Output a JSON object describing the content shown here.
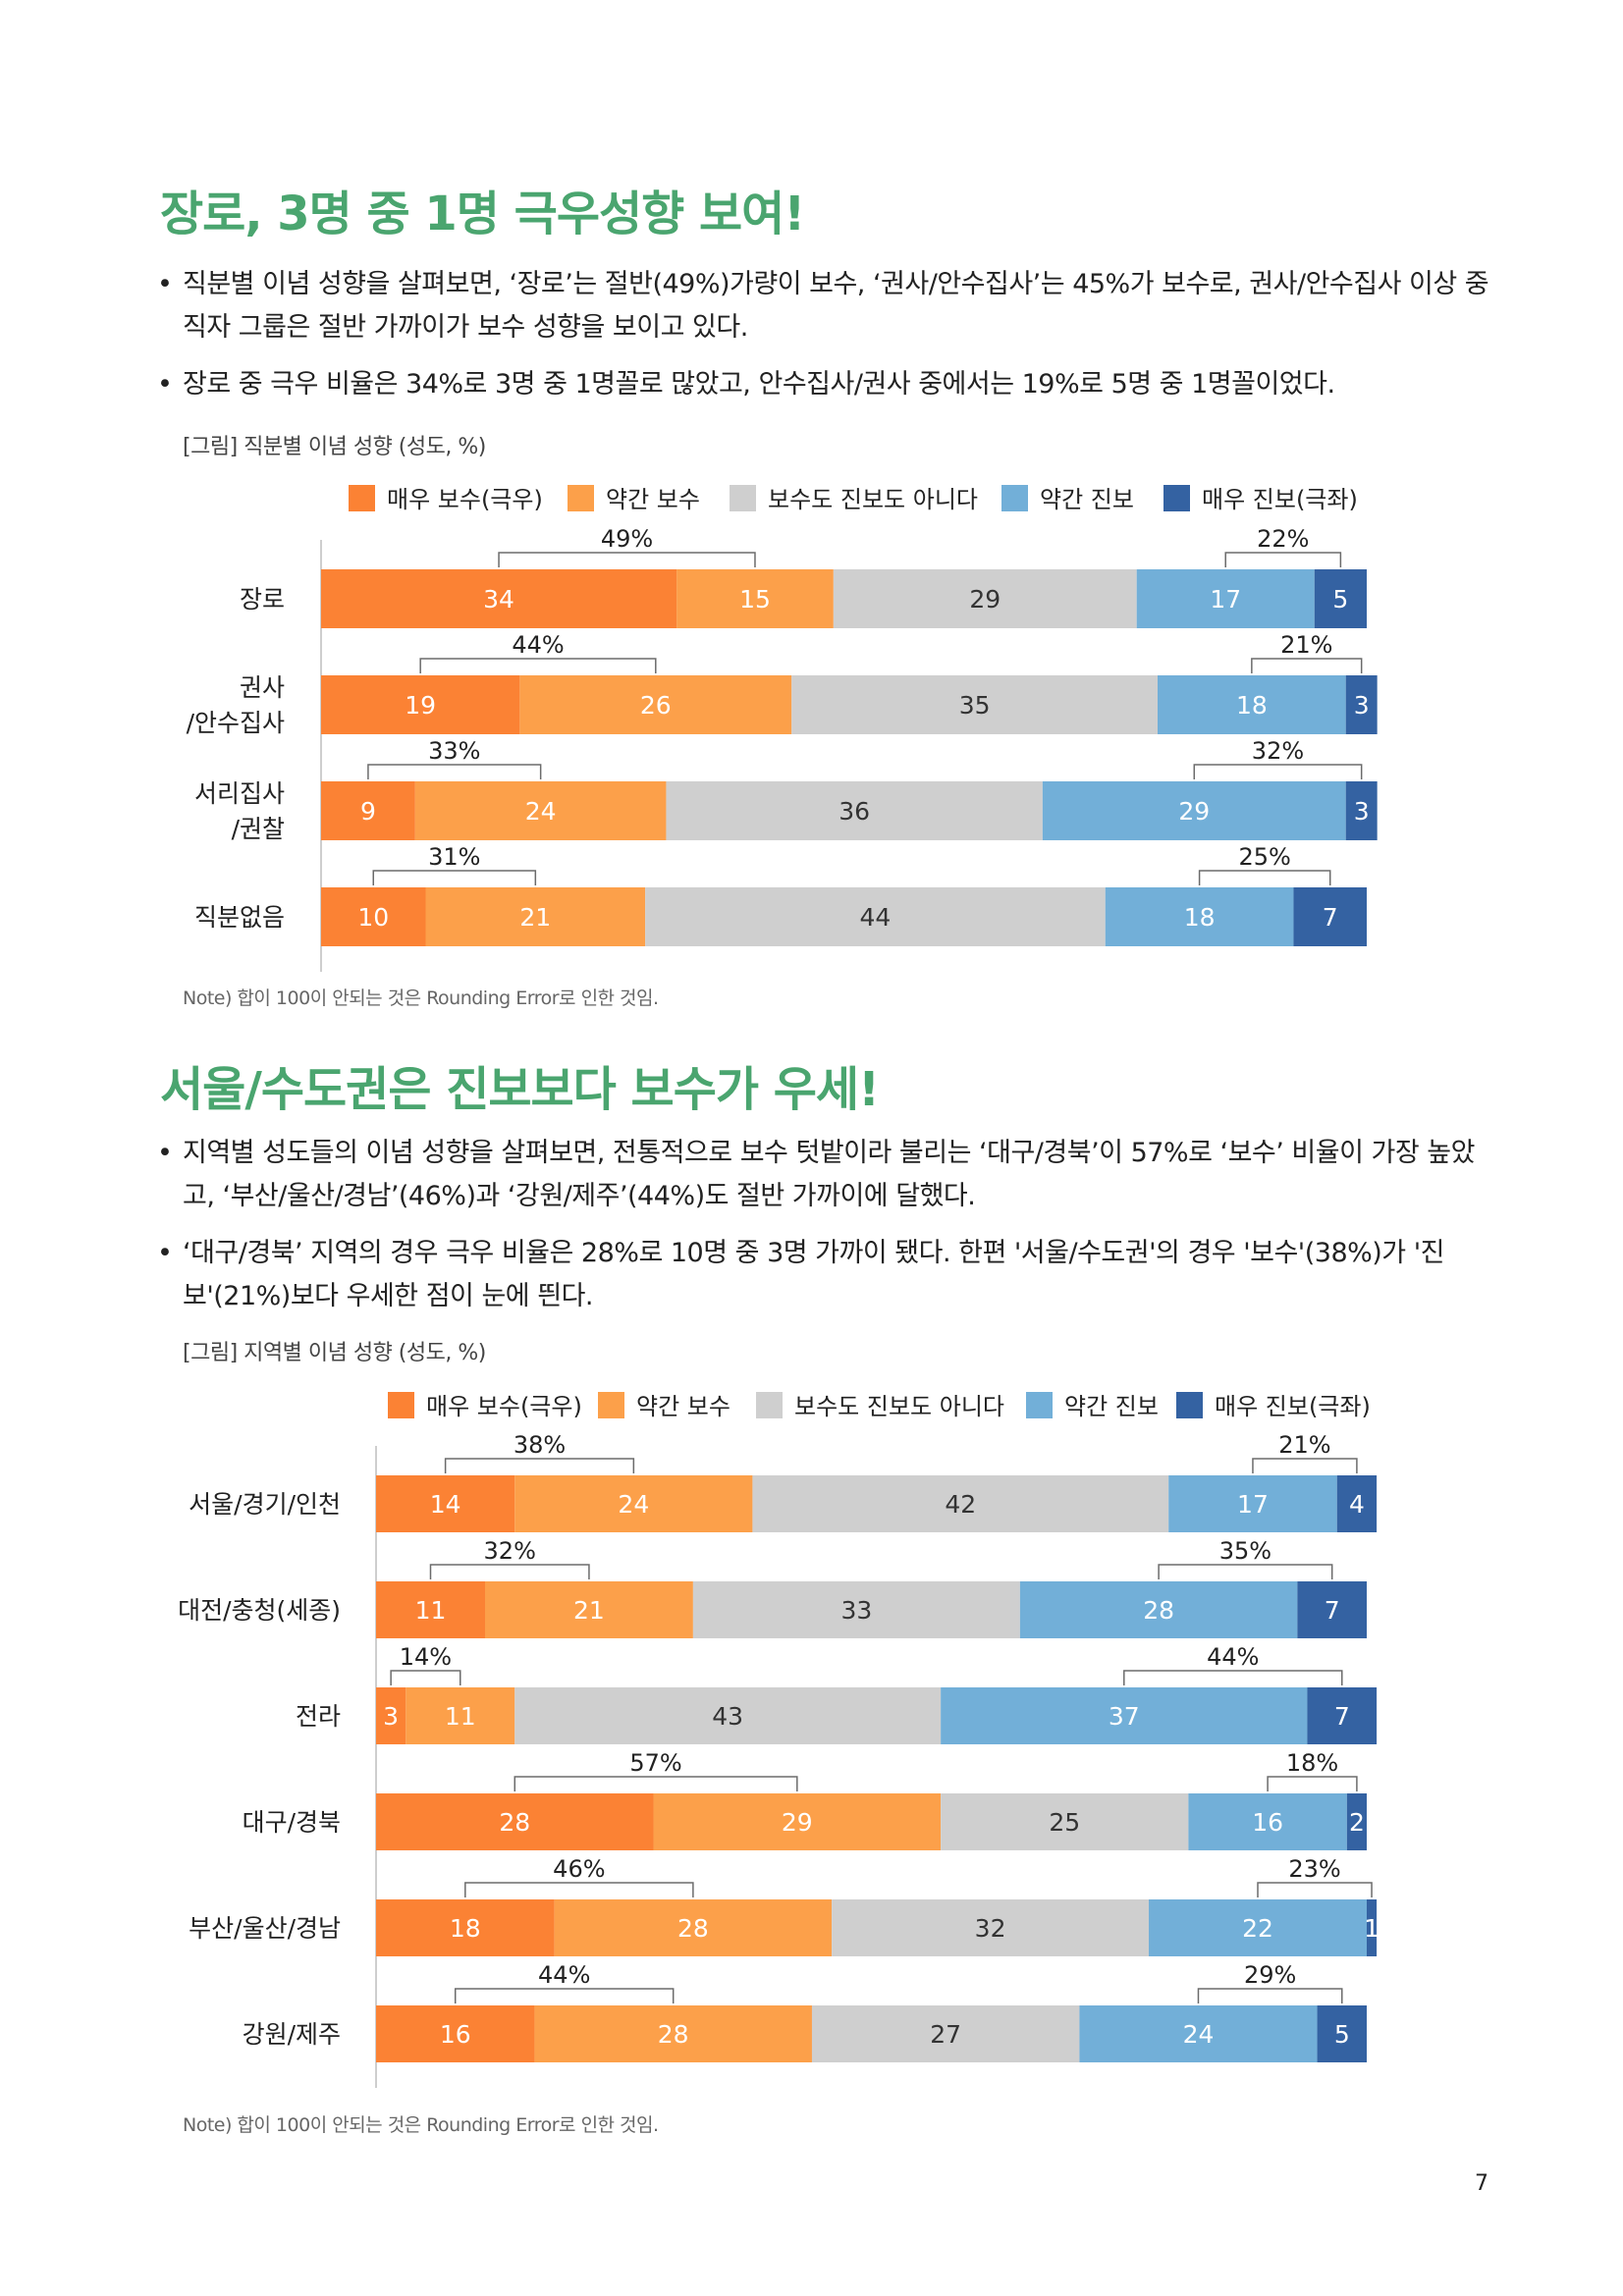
{
  "sections": [
    {
      "title": "장로, 3명 중 1명 극우성향 보여!",
      "bullets": [
        "직분별 이념 성향을 살펴보면, ‘장로’는 절반(49%)가량이 보수, ‘권사/안수집사’는 45%가 보수로, 권사/안수집사 이상 중직자 그룹은 절반 가까이가 보수 성향을 보이고 있다.",
        "장로 중 극우 비율은 34%로 3명 중 1명꼴로 많았고, 안수집사/권사 중에서는 19%로 5명 중 1명꼴이었다."
      ],
      "figure_caption": "[그림] 직분별 이념 성향 (성도, %)",
      "note": "Note) 합이 100이 안되는 것은 Rounding Error로 인한 것임."
    },
    {
      "title": "서울/수도권은 진보보다 보수가 우세!",
      "bullets": [
        "지역별 성도들의 이념 성향을 살펴보면, 전통적으로 보수 텃밭이라 불리는 ‘대구/경북’이 57%로 ‘보수’ 비율이 가장 높았고, ‘부산/울산/경남’(46%)과 ‘강원/제주’(44%)도 절반 가까이에 달했다.",
        "‘대구/경북’ 지역의 경우 극우 비율은 28%로 10명 중 3명 가까이 됐다. 한편 '서울/수도권'의 경우 '보수'(38%)가 '진보'(21%)보다 우세한 점이 눈에 띈다."
      ],
      "figure_caption": "[그림] 지역별 이념 성향 (성도, %)",
      "note": "Note) 합이 100이 안되는 것은 Rounding Error로 인한 것임."
    }
  ],
  "page_number": "7",
  "chart_data": [
    {
      "type": "bar",
      "orientation": "horizontal",
      "stacked": true,
      "title": "[그림] 직분별 이념 성향 (성도, %)",
      "categories": [
        [
          "장로"
        ],
        [
          "권사",
          "/안수집사"
        ],
        [
          "서리집사",
          "/권찰"
        ],
        [
          "직분없음"
        ]
      ],
      "series": [
        {
          "name": "매우 보수(극우)",
          "color": "#fb8234",
          "values": [
            34,
            19,
            9,
            10
          ]
        },
        {
          "name": "약간 보수",
          "color": "#fca04a",
          "values": [
            15,
            26,
            24,
            21
          ]
        },
        {
          "name": "보수도 진보도 아니다",
          "color": "#cfcfcf",
          "values": [
            29,
            35,
            36,
            44
          ]
        },
        {
          "name": "약간 진보",
          "color": "#72afd8",
          "values": [
            17,
            18,
            29,
            18
          ]
        },
        {
          "name": "매우 진보(극좌)",
          "color": "#3462a2",
          "values": [
            5,
            3,
            3,
            7
          ]
        }
      ],
      "conservative_totals": [
        "49%",
        "44%",
        "33%",
        "31%"
      ],
      "progressive_totals": [
        "22%",
        "21%",
        "32%",
        "25%"
      ],
      "legend": "top",
      "xlim": [
        0,
        100
      ]
    },
    {
      "type": "bar",
      "orientation": "horizontal",
      "stacked": true,
      "title": "[그림] 지역별 이념 성향 (성도, %)",
      "categories": [
        [
          "서울/경기/인천"
        ],
        [
          "대전/충청(세종)"
        ],
        [
          "전라"
        ],
        [
          "대구/경북"
        ],
        [
          "부산/울산/경남"
        ],
        [
          "강원/제주"
        ]
      ],
      "series": [
        {
          "name": "매우 보수(극우)",
          "color": "#fb8234",
          "values": [
            14,
            11,
            3,
            28,
            18,
            16
          ]
        },
        {
          "name": "약간 보수",
          "color": "#fca04a",
          "values": [
            24,
            21,
            11,
            29,
            28,
            28
          ]
        },
        {
          "name": "보수도 진보도 아니다",
          "color": "#cfcfcf",
          "values": [
            42,
            33,
            43,
            25,
            32,
            27
          ]
        },
        {
          "name": "약간 진보",
          "color": "#72afd8",
          "values": [
            17,
            28,
            37,
            16,
            22,
            24
          ]
        },
        {
          "name": "매우 진보(극좌)",
          "color": "#3462a2",
          "values": [
            4,
            7,
            7,
            2,
            1,
            5
          ]
        }
      ],
      "conservative_totals": [
        "38%",
        "32%",
        "14%",
        "57%",
        "46%",
        "44%"
      ],
      "progressive_totals": [
        "21%",
        "35%",
        "44%",
        "18%",
        "23%",
        "29%"
      ],
      "legend": "top",
      "xlim": [
        0,
        100
      ]
    }
  ]
}
